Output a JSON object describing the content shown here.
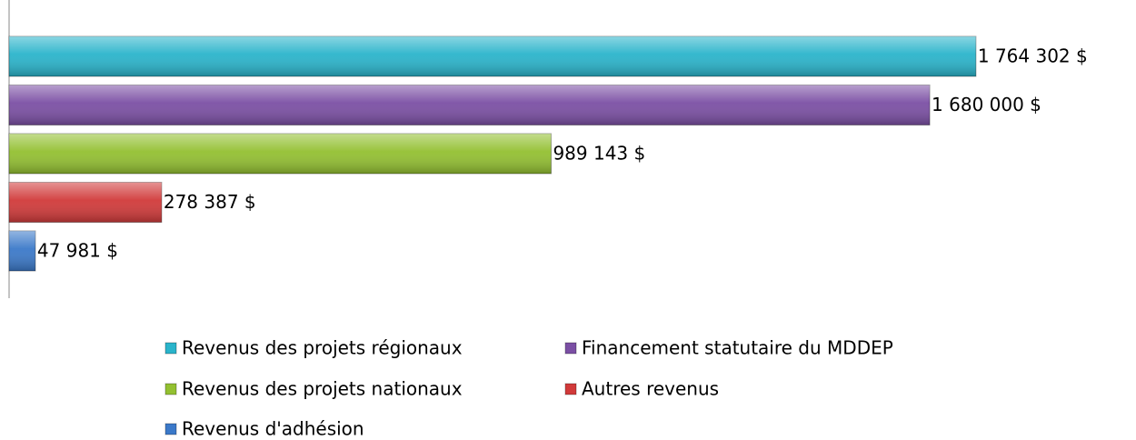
{
  "chart_data": {
    "type": "bar",
    "orientation": "horizontal",
    "series": [
      {
        "name": "Revenus des projets régionaux",
        "color": "#2ab4cb",
        "values": [
          1764302
        ],
        "value_labels": [
          "1 764 302 $"
        ]
      },
      {
        "name": "Financement statutaire du MDDEP",
        "color": "#7b4fa4",
        "values": [
          1680000
        ],
        "value_labels": [
          "1 680 000 $"
        ]
      },
      {
        "name": "Revenus des projets nationaux",
        "color": "#93c031",
        "values": [
          989143
        ],
        "value_labels": [
          "989 143 $"
        ]
      },
      {
        "name": "Autres revenus",
        "color": "#d13a3a",
        "values": [
          278387
        ],
        "value_labels": [
          "278 387 $"
        ]
      },
      {
        "name": "Revenus d'adhésion",
        "color": "#3b79c9",
        "values": [
          47981
        ],
        "value_labels": [
          "47 981 $"
        ]
      }
    ],
    "xlim": [
      0,
      2000000
    ],
    "legend": "bottom"
  }
}
